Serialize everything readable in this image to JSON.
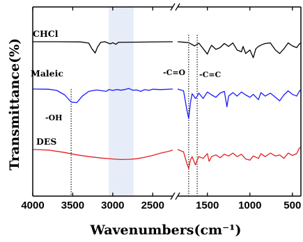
{
  "chart_data": {
    "type": "line",
    "xlabel": "Wavenumbers(cm⁻¹)",
    "ylabel": "Transmittance(%)",
    "xlim": [
      4000,
      400
    ],
    "x_ticks": [
      "4000",
      "3500",
      "3000",
      "2500",
      "1500",
      "1000",
      "500"
    ],
    "axis_break": [
      2250,
      1850
    ],
    "highlight_band": [
      3050,
      2740
    ],
    "reference_lines": [
      3520,
      1720,
      1620
    ],
    "series": [
      {
        "name": "CHCl",
        "color": "#000000",
        "label": "CHCl",
        "points": [
          [
            4000,
            0
          ],
          [
            3700,
            0
          ],
          [
            3400,
            -0.02
          ],
          [
            3300,
            -0.12
          ],
          [
            3260,
            -0.6
          ],
          [
            3220,
            -0.95
          ],
          [
            3190,
            -0.45
          ],
          [
            3150,
            -0.05
          ],
          [
            3100,
            0
          ],
          [
            3030,
            -0.18
          ],
          [
            3000,
            -0.08
          ],
          [
            2960,
            -0.22
          ],
          [
            2930,
            -0.05
          ],
          [
            2250,
            0
          ],
          [
            1850,
            0
          ],
          [
            1780,
            -0.04
          ],
          [
            1720,
            -0.08
          ],
          [
            1650,
            -0.35
          ],
          [
            1600,
            -0.12
          ],
          [
            1500,
            -1.05
          ],
          [
            1470,
            -0.55
          ],
          [
            1450,
            -0.3
          ],
          [
            1400,
            -0.65
          ],
          [
            1350,
            -0.5
          ],
          [
            1300,
            -0.15
          ],
          [
            1250,
            -0.4
          ],
          [
            1200,
            -0.1
          ],
          [
            1150,
            -0.7
          ],
          [
            1100,
            -0.85
          ],
          [
            1080,
            -0.4
          ],
          [
            1050,
            -1.0
          ],
          [
            1000,
            -0.7
          ],
          [
            960,
            -1.35
          ],
          [
            930,
            -0.6
          ],
          [
            900,
            -0.4
          ],
          [
            860,
            -0.25
          ],
          [
            820,
            -0.15
          ],
          [
            760,
            -0.1
          ],
          [
            700,
            -0.7
          ],
          [
            650,
            -1.0
          ],
          [
            600,
            -0.6
          ],
          [
            550,
            -0.1
          ],
          [
            500,
            -0.35
          ],
          [
            450,
            -0.5
          ],
          [
            420,
            -0.2
          ],
          [
            400,
            -0.1
          ]
        ]
      },
      {
        "name": "Maleic",
        "color": "#1a1aff",
        "label": "Maleic",
        "points": [
          [
            4000,
            0
          ],
          [
            3800,
            -0.02
          ],
          [
            3700,
            -0.12
          ],
          [
            3600,
            -0.5
          ],
          [
            3520,
            -1.1
          ],
          [
            3450,
            -1.15
          ],
          [
            3380,
            -0.6
          ],
          [
            3300,
            -0.2
          ],
          [
            3200,
            -0.08
          ],
          [
            3080,
            -0.2
          ],
          [
            3050,
            -0.05
          ],
          [
            3000,
            -0.12
          ],
          [
            2950,
            -0.04
          ],
          [
            2900,
            -0.1
          ],
          [
            2850,
            -0.05
          ],
          [
            2800,
            0.05
          ],
          [
            2750,
            -0.1
          ],
          [
            2700,
            -0.08
          ],
          [
            2650,
            -0.2
          ],
          [
            2600,
            -0.05
          ],
          [
            2550,
            -0.12
          ],
          [
            2500,
            -0.02
          ],
          [
            2400,
            -0.05
          ],
          [
            2250,
            0
          ],
          [
            1850,
            0
          ],
          [
            1780,
            -0.15
          ],
          [
            1740,
            -1.8
          ],
          [
            1720,
            -2.5
          ],
          [
            1700,
            -1.2
          ],
          [
            1680,
            -0.4
          ],
          [
            1640,
            -0.8
          ],
          [
            1620,
            -0.6
          ],
          [
            1600,
            -0.35
          ],
          [
            1550,
            -0.8
          ],
          [
            1500,
            -0.25
          ],
          [
            1450,
            -0.5
          ],
          [
            1400,
            -0.7
          ],
          [
            1350,
            -0.35
          ],
          [
            1300,
            -0.2
          ],
          [
            1270,
            -1.5
          ],
          [
            1250,
            -0.6
          ],
          [
            1200,
            -0.3
          ],
          [
            1150,
            -0.6
          ],
          [
            1100,
            -0.25
          ],
          [
            1050,
            -0.5
          ],
          [
            1000,
            -0.7
          ],
          [
            960,
            -0.45
          ],
          [
            900,
            -0.9
          ],
          [
            870,
            -0.3
          ],
          [
            820,
            -0.6
          ],
          [
            760,
            -0.35
          ],
          [
            700,
            -0.7
          ],
          [
            650,
            -1.0
          ],
          [
            600,
            -0.5
          ],
          [
            550,
            -0.15
          ],
          [
            500,
            -0.45
          ],
          [
            450,
            -0.6
          ],
          [
            420,
            -0.2
          ],
          [
            400,
            -0.05
          ]
        ]
      },
      {
        "name": "DES",
        "color": "#e61e1e",
        "label": "DES",
        "points": [
          [
            4000,
            0
          ],
          [
            3800,
            -0.05
          ],
          [
            3600,
            -0.25
          ],
          [
            3450,
            -0.45
          ],
          [
            3300,
            -0.6
          ],
          [
            3150,
            -0.72
          ],
          [
            3000,
            -0.8
          ],
          [
            2900,
            -0.85
          ],
          [
            2800,
            -0.83
          ],
          [
            2700,
            -0.78
          ],
          [
            2600,
            -0.65
          ],
          [
            2500,
            -0.5
          ],
          [
            2400,
            -0.3
          ],
          [
            2300,
            -0.15
          ],
          [
            2250,
            -0.05
          ],
          [
            1850,
            0
          ],
          [
            1780,
            -0.2
          ],
          [
            1740,
            -1.2
          ],
          [
            1720,
            -1.6
          ],
          [
            1700,
            -0.9
          ],
          [
            1680,
            -0.6
          ],
          [
            1640,
            -1.3
          ],
          [
            1620,
            -0.9
          ],
          [
            1600,
            -0.6
          ],
          [
            1550,
            -0.75
          ],
          [
            1500,
            -0.35
          ],
          [
            1480,
            -1.0
          ],
          [
            1450,
            -0.6
          ],
          [
            1400,
            -0.45
          ],
          [
            1350,
            -0.7
          ],
          [
            1300,
            -0.4
          ],
          [
            1250,
            -0.55
          ],
          [
            1200,
            -0.3
          ],
          [
            1150,
            -0.6
          ],
          [
            1100,
            -0.4
          ],
          [
            1050,
            -0.8
          ],
          [
            1000,
            -0.9
          ],
          [
            960,
            -0.55
          ],
          [
            900,
            -0.75
          ],
          [
            870,
            -0.35
          ],
          [
            820,
            -0.6
          ],
          [
            760,
            -0.3
          ],
          [
            700,
            -0.55
          ],
          [
            650,
            -0.45
          ],
          [
            600,
            -0.75
          ],
          [
            550,
            -0.3
          ],
          [
            500,
            -0.5
          ],
          [
            450,
            -0.35
          ],
          [
            420,
            0.1
          ],
          [
            400,
            0.2
          ]
        ]
      }
    ],
    "annotations": [
      "-OH",
      "-C=O",
      "-C=C"
    ]
  }
}
